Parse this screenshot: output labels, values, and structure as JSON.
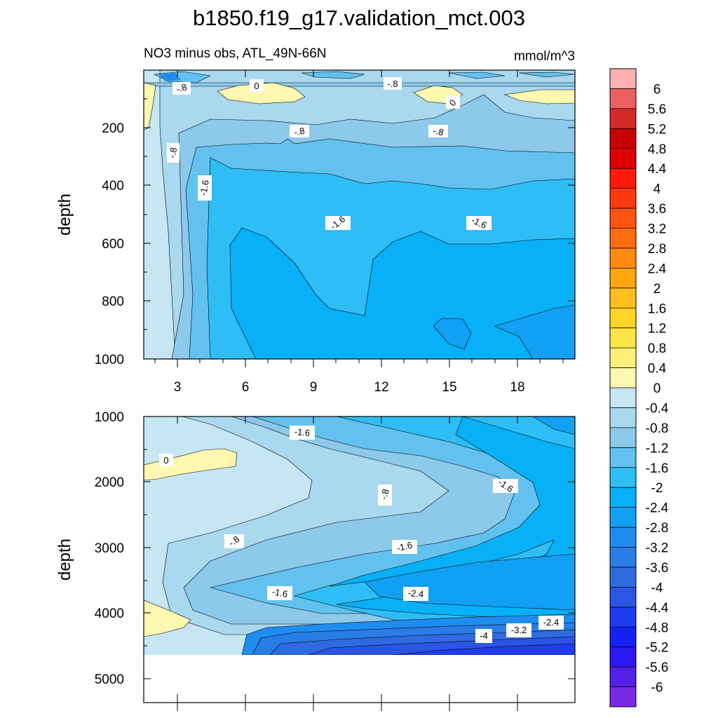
{
  "chart_data": {
    "type": "contour",
    "title": "b1850.f19_g17.validation_mct.003",
    "variable_label": "NO3 minus obs, ATL_49N-66N",
    "units": "mmol/m^3",
    "panels": [
      {
        "id": "upper",
        "ylabel": "depth",
        "ylim": [
          1000,
          0
        ],
        "y_ticks": [
          "200",
          "400",
          "600",
          "800",
          "1000"
        ],
        "x_ticks": [
          "3",
          "6",
          "9",
          "12",
          "15",
          "18"
        ],
        "xlim": [
          1.5,
          20.5
        ],
        "contour_labels": [
          "-.8",
          "0",
          "-.8",
          "0",
          "-.8",
          "-.8",
          "-.8",
          "-1.6",
          "-1.6",
          "-1.6"
        ]
      },
      {
        "id": "lower",
        "ylabel": "depth",
        "ylim": [
          5350,
          1000
        ],
        "y_ticks": [
          "1000",
          "2000",
          "3000",
          "4000",
          "5000"
        ],
        "xlim": [
          1.5,
          20.5
        ],
        "contour_labels": [
          "-1.6",
          "0",
          "-.8",
          "-1.6",
          "-.8",
          "-1.6",
          "-1.6",
          "-2.4",
          "-2.4",
          "-3.2",
          "-4"
        ]
      }
    ],
    "colorbar": {
      "labels": [
        "6",
        "5.6",
        "5.2",
        "4.8",
        "4.4",
        "4",
        "3.6",
        "3.2",
        "2.8",
        "2.4",
        "2",
        "1.6",
        "1.2",
        "0.8",
        "0.4",
        "0",
        "-0.4",
        "-0.8",
        "-1.2",
        "-1.6",
        "-2",
        "-2.4",
        "-2.8",
        "-3.2",
        "-3.6",
        "-4",
        "-4.4",
        "-4.8",
        "-5.2",
        "-5.6",
        "-6"
      ],
      "colors": [
        "#ffb0b0",
        "#ea6060",
        "#d42a2a",
        "#c80000",
        "#e00000",
        "#ff1a0a",
        "#ff3a10",
        "#ff5310",
        "#ff6d10",
        "#ff8a10",
        "#ffa510",
        "#ffbf20",
        "#ffd52a",
        "#ffe446",
        "#fff078",
        "#fff8b0",
        "#c6e6f4",
        "#a9d8ef",
        "#8cc9eb",
        "#62c1ef",
        "#2ebdf5",
        "#08b1f7",
        "#12a0f3",
        "#1f8df0",
        "#2a7ce6",
        "#2f6ae0",
        "#2c55e4",
        "#1f3cf0",
        "#1420f5",
        "#2a18ee",
        "#5020e8",
        "#7a28e4"
      ]
    }
  }
}
